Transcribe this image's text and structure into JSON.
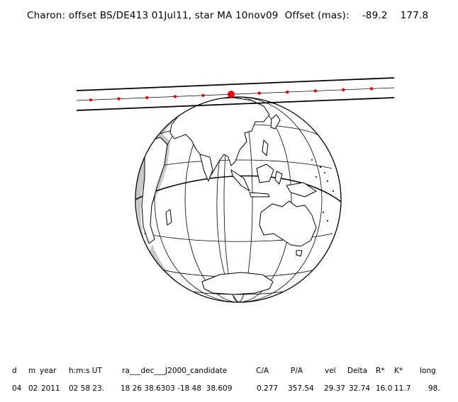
{
  "title": "Charon: offset BS/DE413 01Jul11, star MA 10nov09  Offset (mas):    -89.2    177.8",
  "colors": {
    "ink": "#000000",
    "shadow": "#c8c8c8",
    "track_dot": "#ee0000",
    "land_fill": "#ffffff"
  },
  "map": {
    "projection": "orthographic globe",
    "visible_regions": [
      "Asia",
      "Indonesia",
      "Australia",
      "Africa",
      "Antarctica"
    ],
    "shading": "night-side shading on western limb"
  },
  "track": {
    "dot_count": 11,
    "highlight_dot_index": 5
  },
  "table": {
    "headers": [
      "d",
      "m",
      "year",
      "h:m:s UT",
      "ra___dec___J2000_candidate",
      "C/A",
      "P/A",
      "vel",
      "Delta",
      "R*",
      "K*",
      "long"
    ],
    "values": [
      "04",
      "02",
      "2011",
      "02 58 23.",
      "18 26 38.6303 -18 48  38.609",
      "0.277",
      "357.54",
      "29.37",
      "32.74",
      "16.0",
      "11.7",
      "98."
    ]
  }
}
